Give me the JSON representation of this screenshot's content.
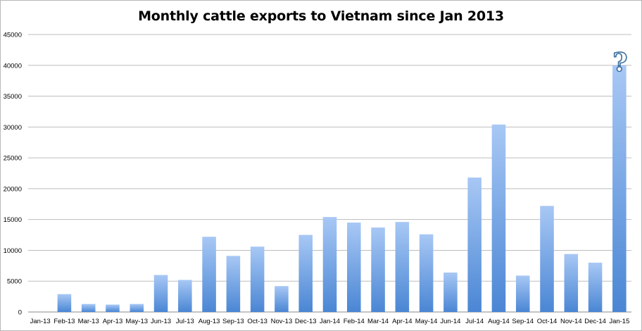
{
  "chart_data": {
    "type": "bar",
    "title": "Monthly cattle exports to Vietnam since Jan 2013",
    "xlabel": "",
    "ylabel": "",
    "ylim": [
      0,
      45000
    ],
    "yticks": [
      0,
      5000,
      10000,
      15000,
      20000,
      25000,
      30000,
      35000,
      40000,
      45000
    ],
    "grid": true,
    "legend": "none",
    "bar_color_top": "#a8c8f5",
    "bar_color_bottom": "#4a86d4",
    "categories": [
      "Jan-13",
      "Feb-13",
      "Mar-13",
      "Apr-13",
      "May-13",
      "Jun-13",
      "Jul-13",
      "Aug-13",
      "Sep-13",
      "Oct-13",
      "Nov-13",
      "Dec-13",
      "Jan-14",
      "Feb-14",
      "Mar-14",
      "Apr-14",
      "May-14",
      "Jun-14",
      "Jul-14",
      "Aug-14",
      "Sep-14",
      "Oct-14",
      "Nov-14",
      "Dec-14",
      "Jan-15"
    ],
    "values": [
      0,
      2900,
      1300,
      1200,
      1300,
      6000,
      5200,
      12200,
      9100,
      10600,
      4200,
      12500,
      15400,
      14500,
      13700,
      14600,
      12600,
      6400,
      21800,
      30400,
      5900,
      17200,
      9400,
      8000,
      40000
    ],
    "annotations": [
      {
        "category": "Jan-15",
        "text": "?"
      }
    ]
  }
}
